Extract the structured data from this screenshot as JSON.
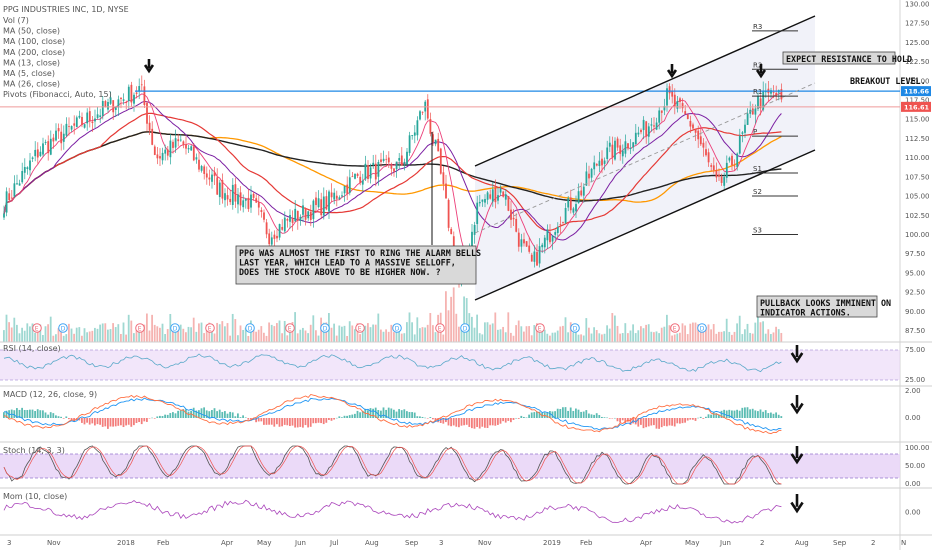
{
  "header": {
    "title": "PPG INDUSTRIES INC, 1D, NYSE",
    "indicators": [
      "Vol (7)",
      "MA (50, close)",
      "MA (100, close)",
      "MA (200, close)",
      "MA (13, close)",
      "MA (5, close)",
      "MA (26, close)",
      "Pivots (Fibonacci, Auto, 15)"
    ]
  },
  "annotations": {
    "alarm": [
      "PPG WAS ALMOST THE FIRST TO RING THE ALARM BELLS",
      "LAST YEAR, WHICH LEAD TO A MASSIVE SELLOFF,",
      "DOES THE STOCK ABOVE TO BE HIGHER NOW. ?"
    ],
    "resistance": "EXPECT RESISTANCE TO HOLD",
    "breakout": "BREAKOUT LEVEL.",
    "pullback": [
      "PULLBACK LOOKS IMMINENT ON",
      "INDICATOR ACTIONS."
    ]
  },
  "pivots": [
    "R3",
    "R2",
    "R1",
    "P",
    "S1",
    "S2",
    "S3"
  ],
  "price_tags": {
    "blue": "118.66",
    "red": "116.61",
    "small": "117.50"
  },
  "colors": {
    "up": "#26a69a",
    "down": "#ef5350",
    "ma50": "#e53935",
    "ma100": "#ff9800",
    "ma200": "#222222",
    "ma13": "#7b1fa2",
    "ma5": "#ec407a",
    "blue_line": "#1e88e5",
    "panel_fill": "#e9d6f7"
  },
  "x_axis": [
    "3",
    "Nov",
    "2018",
    "Feb",
    "Apr",
    "May",
    "Jun",
    "Jul",
    "Aug",
    "Sep",
    "3",
    "Nov",
    "2019",
    "Feb",
    "Apr",
    "May",
    "Jun",
    "2",
    "Aug",
    "Sep",
    "2",
    "N"
  ],
  "chart_data": {
    "type": "line",
    "title": "PPG INDUSTRIES INC, 1D, NYSE",
    "price_axis": [
      "130.00",
      "127.50",
      "125.00",
      "122.50",
      "120.00",
      "117.50",
      "115.00",
      "112.50",
      "110.00",
      "107.50",
      "105.00",
      "102.50",
      "100.00",
      "97.50",
      "95.00",
      "92.50",
      "90.00",
      "87.50"
    ],
    "ylim": [
      86,
      130
    ],
    "close_path": [
      {
        "x": "2017-10-02",
        "y": 104
      },
      {
        "x": "2017-11-01",
        "y": 111
      },
      {
        "x": "2017-12-01",
        "y": 114
      },
      {
        "x": "2018-01-02",
        "y": 117
      },
      {
        "x": "2018-01-26",
        "y": 119
      },
      {
        "x": "2018-02-08",
        "y": 110
      },
      {
        "x": "2018-03-01",
        "y": 112
      },
      {
        "x": "2018-04-02",
        "y": 106
      },
      {
        "x": "2018-05-01",
        "y": 104
      },
      {
        "x": "2018-05-15",
        "y": 100
      },
      {
        "x": "2018-06-01",
        "y": 102
      },
      {
        "x": "2018-07-02",
        "y": 104
      },
      {
        "x": "2018-08-01",
        "y": 108
      },
      {
        "x": "2018-09-04",
        "y": 109
      },
      {
        "x": "2018-09-24",
        "y": 117
      },
      {
        "x": "2018-10-05",
        "y": 110
      },
      {
        "x": "2018-10-24",
        "y": 93
      },
      {
        "x": "2018-11-08",
        "y": 104
      },
      {
        "x": "2018-11-29",
        "y": 106
      },
      {
        "x": "2018-12-14",
        "y": 99
      },
      {
        "x": "2018-12-24",
        "y": 96
      },
      {
        "x": "2019-01-15",
        "y": 102
      },
      {
        "x": "2019-02-01",
        "y": 105
      },
      {
        "x": "2019-02-20",
        "y": 110
      },
      {
        "x": "2019-03-15",
        "y": 112
      },
      {
        "x": "2019-04-01",
        "y": 114
      },
      {
        "x": "2019-04-18",
        "y": 118
      },
      {
        "x": "2019-05-10",
        "y": 114
      },
      {
        "x": "2019-05-31",
        "y": 106
      },
      {
        "x": "2019-06-14",
        "y": 110
      },
      {
        "x": "2019-07-01",
        "y": 117
      },
      {
        "x": "2019-07-18",
        "y": 118.5
      },
      {
        "x": "2019-07-26",
        "y": 117
      }
    ],
    "horizontal_lines": [
      {
        "value": 118.66,
        "color": "blue"
      },
      {
        "value": 116.61,
        "color": "red"
      }
    ],
    "pivot_values": {
      "R3": 126.5,
      "R2": 121.5,
      "R1": 118,
      "P": 112.8,
      "S1": 108,
      "S2": 105,
      "S3": 100
    },
    "panels": [
      {
        "name": "RSI (14, close)",
        "ticks": [
          "75.00",
          "25.00"
        ]
      },
      {
        "name": "MACD (12, 26, close, 9)",
        "ticks": [
          "2.00",
          "0.00"
        ]
      },
      {
        "name": "Stoch (14, 3, 3)",
        "ticks": [
          "100.00",
          "50.00",
          "0.00"
        ]
      },
      {
        "name": "Mom (10, close)",
        "ticks": [
          "0.00"
        ]
      }
    ]
  }
}
